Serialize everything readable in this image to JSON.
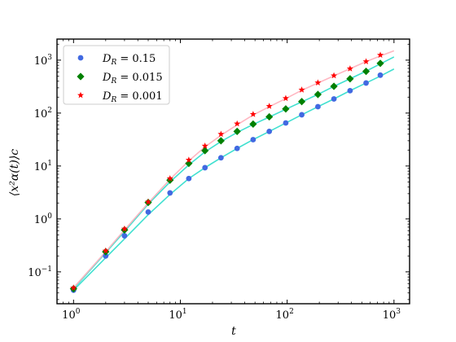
{
  "chart_data": {
    "type": "scatter",
    "xlabel": "t",
    "ylabel": "⟨x²α(t)⟩c",
    "xscale": "log",
    "yscale": "log",
    "xlim": [
      0.7,
      1400
    ],
    "ylim": [
      0.025,
      2500
    ],
    "x_ticks": [
      {
        "value": 1,
        "base": "10",
        "exp": "0"
      },
      {
        "value": 10,
        "base": "10",
        "exp": "1"
      },
      {
        "value": 100,
        "base": "10",
        "exp": "2"
      },
      {
        "value": 1000,
        "base": "10",
        "exp": "3"
      }
    ],
    "y_ticks": [
      {
        "value": 0.1,
        "base": "10",
        "exp": "−1"
      },
      {
        "value": 1,
        "base": "10",
        "exp": "0"
      },
      {
        "value": 10,
        "base": "10",
        "exp": "1"
      },
      {
        "value": 100,
        "base": "10",
        "exp": "2"
      },
      {
        "value": 1000,
        "base": "10",
        "exp": "3"
      }
    ],
    "legend": {
      "position": "upper-left",
      "entries": [
        {
          "label_sym": "D",
          "label_sub": "R",
          "label_val": " = 0.15",
          "marker": "circle",
          "color": "#4169e1"
        },
        {
          "label_sym": "D",
          "label_sub": "R",
          "label_val": " = 0.015",
          "marker": "diamond",
          "color": "#008000"
        },
        {
          "label_sym": "D",
          "label_sub": "R",
          "label_val": " = 0.001",
          "marker": "star",
          "color": "#ff0000"
        }
      ]
    },
    "grid": false,
    "series": [
      {
        "name": "D_R = 0.15",
        "marker": "circle",
        "color": "#4169e1",
        "line_color": "#40e0d0",
        "x": [
          1,
          2,
          3,
          5,
          8,
          12,
          17,
          24,
          34,
          48,
          68,
          97,
          137,
          194,
          274,
          388,
          548,
          745
        ],
        "y": [
          0.045,
          0.2,
          0.48,
          1.35,
          3.1,
          5.8,
          9.3,
          14.3,
          21.5,
          31.5,
          45,
          65,
          93,
          132,
          185,
          265,
          370,
          520
        ],
        "line_x": [
          1,
          2,
          3,
          5,
          8,
          12,
          17,
          24,
          34,
          48,
          68,
          97,
          137,
          194,
          274,
          388,
          548,
          745,
          1000
        ],
        "line_y": [
          0.045,
          0.185,
          0.42,
          1.2,
          2.9,
          5.8,
          9.3,
          14.3,
          21.5,
          31.5,
          45,
          65,
          93,
          132,
          185,
          265,
          370,
          500,
          680
        ]
      },
      {
        "name": "D_R = 0.015",
        "marker": "diamond",
        "color": "#008000",
        "line_color": "#40e0d0",
        "x": [
          1,
          2,
          3,
          5,
          8,
          12,
          17,
          24,
          34,
          48,
          68,
          97,
          137,
          194,
          274,
          388,
          548,
          745
        ],
        "y": [
          0.048,
          0.24,
          0.62,
          2.05,
          5.4,
          11.2,
          19.5,
          30,
          45,
          62,
          85,
          120,
          165,
          225,
          320,
          445,
          615,
          870
        ],
        "line_x": [
          1,
          2,
          3,
          5,
          8,
          12,
          17,
          24,
          34,
          48,
          68,
          97,
          137,
          194,
          274,
          388,
          548,
          745,
          1000
        ],
        "line_y": [
          0.048,
          0.23,
          0.58,
          1.9,
          5.0,
          10.5,
          18.5,
          29,
          43,
          61,
          84,
          118,
          163,
          225,
          320,
          445,
          620,
          850,
          1150
        ]
      },
      {
        "name": "D_R = 0.001",
        "marker": "star",
        "color": "#ff0000",
        "line_color": "#ffb6c1",
        "x": [
          1,
          2,
          3,
          5,
          8,
          12,
          17,
          24,
          34,
          48,
          68,
          97,
          137,
          194,
          274,
          388,
          548,
          745
        ],
        "y": [
          0.05,
          0.25,
          0.65,
          2.1,
          5.8,
          13.0,
          24,
          40,
          63,
          95,
          135,
          190,
          275,
          375,
          510,
          690,
          940,
          1250
        ],
        "line_x": [
          1,
          2,
          3,
          5,
          8,
          12,
          17,
          24,
          34,
          48,
          68,
          97,
          137,
          194,
          274,
          388,
          548,
          745,
          1000
        ],
        "line_y": [
          0.05,
          0.24,
          0.62,
          2.0,
          5.6,
          12.5,
          23,
          38,
          60,
          92,
          132,
          188,
          270,
          370,
          505,
          690,
          940,
          1200,
          1500
        ]
      }
    ]
  }
}
